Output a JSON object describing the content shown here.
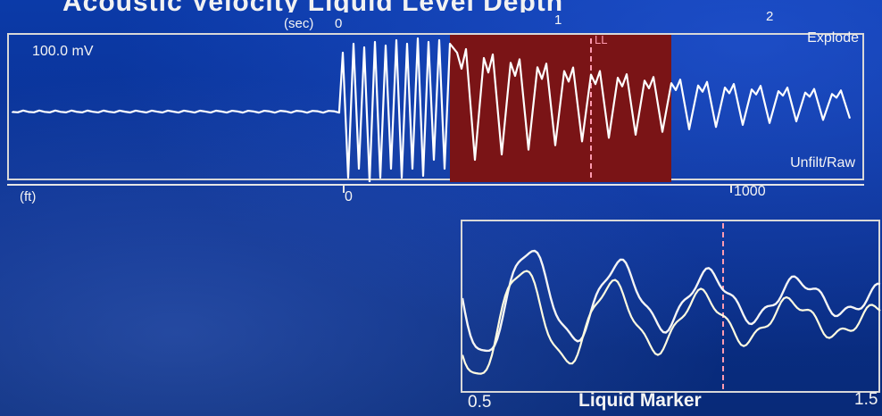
{
  "screen_title": "Acoustic Velocity Liquid Level Depth",
  "time_axis": {
    "unit": "(sec)",
    "ticks": [
      "0",
      "1",
      "2"
    ]
  },
  "upper_trace": {
    "scale": "100.0 mV",
    "shot_label": "Explode",
    "filter_label": "Unfilt/Raw",
    "marker_label": "LL"
  },
  "depth_axis": {
    "unit": "(ft)",
    "ticks": [
      "0",
      "1000"
    ]
  },
  "zoom": {
    "start": "0.5",
    "end": "1.5",
    "marker_label": "Liquid Marker"
  },
  "colors": {
    "background": "#0a2f8c",
    "highlight": "#7a1416",
    "trace": "#ffffff",
    "marker": "#ff9bb0"
  }
}
